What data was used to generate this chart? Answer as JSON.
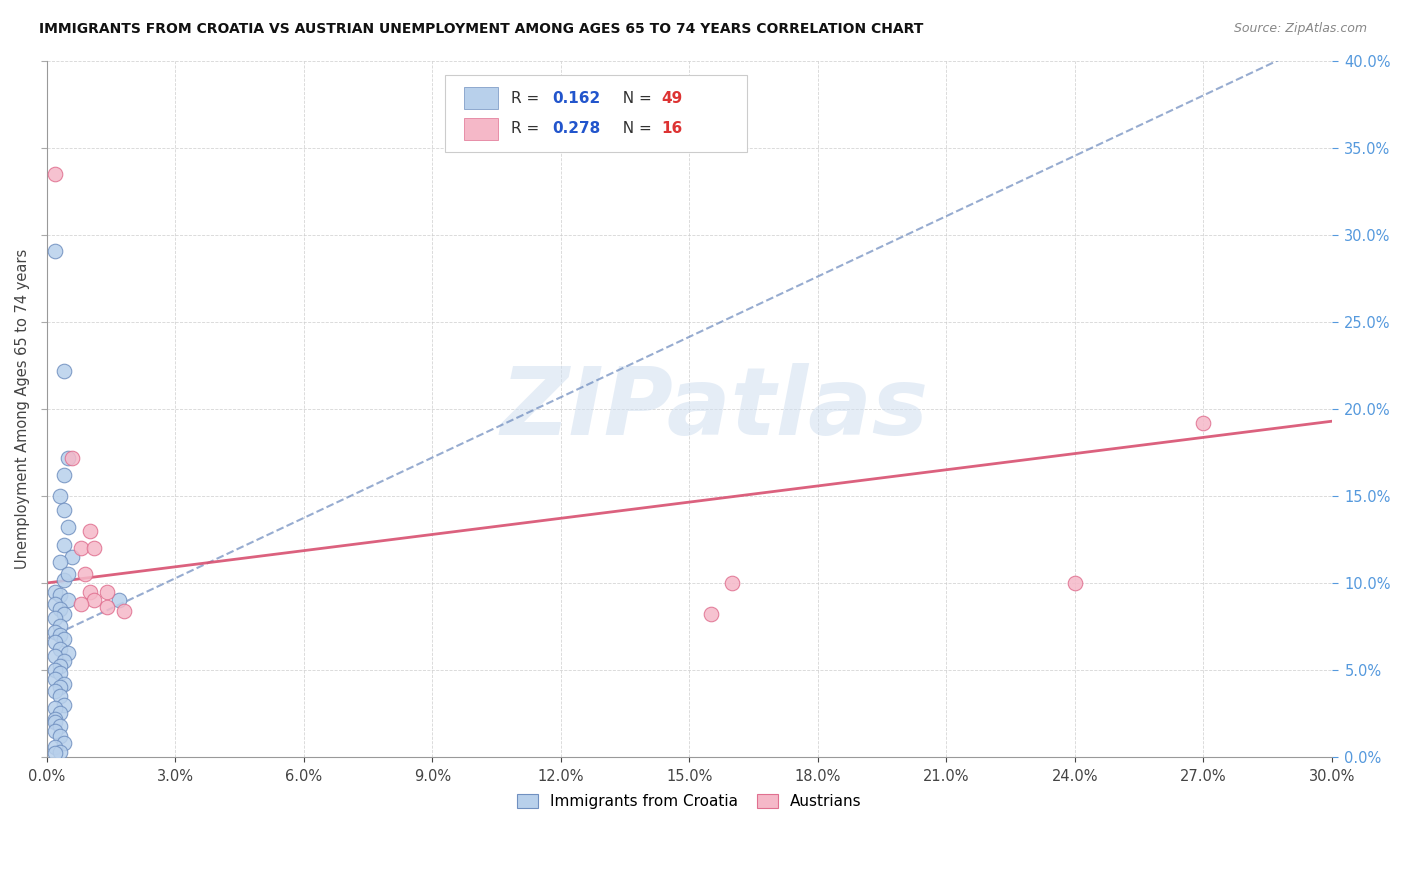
{
  "title": "IMMIGRANTS FROM CROATIA VS AUSTRIAN UNEMPLOYMENT AMONG AGES 65 TO 74 YEARS CORRELATION CHART",
  "source": "Source: ZipAtlas.com",
  "ylabel": "Unemployment Among Ages 65 to 74 years",
  "xlim": [
    0.0,
    0.3
  ],
  "ylim": [
    0.0,
    0.4
  ],
  "xtick_vals": [
    0.0,
    0.03,
    0.06,
    0.09,
    0.12,
    0.15,
    0.18,
    0.21,
    0.24,
    0.27,
    0.3
  ],
  "ytick_vals": [
    0.0,
    0.05,
    0.1,
    0.15,
    0.2,
    0.25,
    0.3,
    0.35,
    0.4
  ],
  "blue_R": 0.162,
  "blue_N": 49,
  "pink_R": 0.278,
  "pink_N": 16,
  "blue_face": "#b8d0eb",
  "blue_edge": "#7090c0",
  "pink_face": "#f5b8c8",
  "pink_edge": "#e07090",
  "blue_line_color": "#6080b8",
  "pink_line_color": "#d85070",
  "legend_R_color": "#2255cc",
  "legend_N_color": "#dd3333",
  "blue_line_x": [
    0.0,
    0.3
  ],
  "blue_line_y": [
    0.068,
    0.415
  ],
  "pink_line_x": [
    0.0,
    0.3
  ],
  "pink_line_y": [
    0.1,
    0.193
  ],
  "blue_scatter": [
    [
      0.002,
      0.291
    ],
    [
      0.004,
      0.222
    ],
    [
      0.005,
      0.172
    ],
    [
      0.004,
      0.162
    ],
    [
      0.003,
      0.15
    ],
    [
      0.004,
      0.142
    ],
    [
      0.005,
      0.132
    ],
    [
      0.004,
      0.122
    ],
    [
      0.006,
      0.115
    ],
    [
      0.003,
      0.112
    ],
    [
      0.004,
      0.102
    ],
    [
      0.005,
      0.105
    ],
    [
      0.002,
      0.095
    ],
    [
      0.003,
      0.093
    ],
    [
      0.005,
      0.09
    ],
    [
      0.002,
      0.088
    ],
    [
      0.003,
      0.085
    ],
    [
      0.004,
      0.082
    ],
    [
      0.002,
      0.08
    ],
    [
      0.003,
      0.075
    ],
    [
      0.002,
      0.072
    ],
    [
      0.003,
      0.07
    ],
    [
      0.004,
      0.068
    ],
    [
      0.002,
      0.066
    ],
    [
      0.003,
      0.062
    ],
    [
      0.005,
      0.06
    ],
    [
      0.002,
      0.058
    ],
    [
      0.004,
      0.055
    ],
    [
      0.003,
      0.052
    ],
    [
      0.002,
      0.05
    ],
    [
      0.003,
      0.048
    ],
    [
      0.002,
      0.045
    ],
    [
      0.004,
      0.042
    ],
    [
      0.003,
      0.04
    ],
    [
      0.002,
      0.038
    ],
    [
      0.003,
      0.035
    ],
    [
      0.004,
      0.03
    ],
    [
      0.002,
      0.028
    ],
    [
      0.003,
      0.025
    ],
    [
      0.002,
      0.022
    ],
    [
      0.002,
      0.02
    ],
    [
      0.003,
      0.018
    ],
    [
      0.002,
      0.015
    ],
    [
      0.003,
      0.012
    ],
    [
      0.004,
      0.008
    ],
    [
      0.002,
      0.006
    ],
    [
      0.003,
      0.003
    ],
    [
      0.002,
      0.002
    ],
    [
      0.017,
      0.09
    ]
  ],
  "pink_scatter": [
    [
      0.002,
      0.335
    ],
    [
      0.006,
      0.172
    ],
    [
      0.01,
      0.13
    ],
    [
      0.008,
      0.12
    ],
    [
      0.011,
      0.12
    ],
    [
      0.009,
      0.105
    ],
    [
      0.01,
      0.095
    ],
    [
      0.014,
      0.095
    ],
    [
      0.011,
      0.09
    ],
    [
      0.008,
      0.088
    ],
    [
      0.014,
      0.086
    ],
    [
      0.018,
      0.084
    ],
    [
      0.16,
      0.1
    ],
    [
      0.155,
      0.082
    ],
    [
      0.24,
      0.1
    ],
    [
      0.27,
      0.192
    ]
  ],
  "watermark_text": "ZIPatlas",
  "figsize": [
    14.06,
    8.92
  ],
  "dpi": 100
}
